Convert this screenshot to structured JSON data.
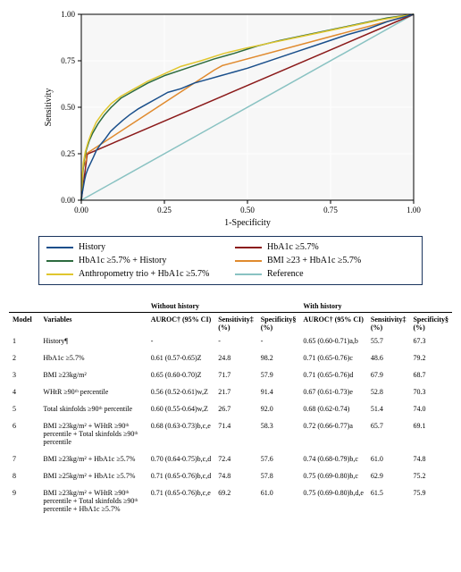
{
  "chart": {
    "type": "line",
    "background_color": "#ffffff",
    "plot_background_color": "#f7f7f7",
    "grid_color": "#ffffff",
    "grid_width": 1,
    "axis_color": "#000000",
    "title_fontsize": 10,
    "label_fontsize": 10,
    "tick_fontsize": 9,
    "xlabel": "1-Specificity",
    "ylabel": "Sensitivity",
    "xlim": [
      0,
      1
    ],
    "ylim": [
      0,
      1
    ],
    "xticks": [
      0.0,
      0.25,
      0.5,
      0.75,
      1.0
    ],
    "yticks": [
      0.0,
      0.25,
      0.5,
      0.75,
      1.0
    ],
    "xtick_labels": [
      "0.00",
      "0.25",
      "0.50",
      "0.75",
      "1.00"
    ],
    "ytick_labels": [
      "0.00",
      "0.25",
      "0.50",
      "0.75",
      "1.00"
    ],
    "line_width": 1.5,
    "series": [
      {
        "name": "Reference",
        "color": "#89c2c2",
        "x": [
          0,
          1
        ],
        "y": [
          0,
          1
        ]
      },
      {
        "name": "HbA1c ≥5.7%",
        "color": "#8b1a1a",
        "x": [
          0.0,
          0.018,
          1.0
        ],
        "y": [
          0.0,
          0.248,
          1.0
        ]
      },
      {
        "name": "BMI ≥23 + HbA1c ≥5.7%",
        "color": "#e08a2e",
        "x": [
          0.0,
          0.005,
          0.015,
          0.015,
          0.4,
          0.424,
          1.0
        ],
        "y": [
          0.0,
          0.17,
          0.22,
          0.25,
          0.7,
          0.724,
          1.0
        ]
      },
      {
        "name": "HbA1c ≥5.7% + History",
        "color": "#2d6b3e",
        "x": [
          0.0,
          0.004,
          0.008,
          0.015,
          0.024,
          0.034,
          0.05,
          0.07,
          0.09,
          0.12,
          0.16,
          0.2,
          0.25,
          0.3,
          0.35,
          0.4,
          0.46,
          0.53,
          0.6,
          0.68,
          0.76,
          0.84,
          0.92,
          1.0
        ],
        "y": [
          0.0,
          0.13,
          0.21,
          0.27,
          0.32,
          0.36,
          0.41,
          0.46,
          0.5,
          0.55,
          0.59,
          0.63,
          0.67,
          0.7,
          0.73,
          0.76,
          0.79,
          0.83,
          0.86,
          0.89,
          0.92,
          0.95,
          0.98,
          1.0
        ]
      },
      {
        "name": "Anthropometry trio + HbA1c ≥5.7%",
        "color": "#e0c62e",
        "x": [
          0.0,
          0.003,
          0.006,
          0.012,
          0.02,
          0.03,
          0.045,
          0.065,
          0.09,
          0.12,
          0.16,
          0.2,
          0.25,
          0.3,
          0.36,
          0.43,
          0.5,
          0.58,
          0.66,
          0.74,
          0.82,
          0.9,
          1.0
        ],
        "y": [
          0.0,
          0.12,
          0.2,
          0.26,
          0.31,
          0.36,
          0.42,
          0.47,
          0.52,
          0.56,
          0.6,
          0.64,
          0.68,
          0.72,
          0.75,
          0.79,
          0.82,
          0.85,
          0.88,
          0.91,
          0.94,
          0.97,
          1.0
        ]
      },
      {
        "name": "History",
        "color": "#1a4f8b",
        "x": [
          0.0,
          0.002,
          0.004,
          0.007,
          0.01,
          0.014,
          0.02,
          0.028,
          0.036,
          0.046,
          0.058,
          0.072,
          0.088,
          0.106,
          0.125,
          0.146,
          0.17,
          0.2,
          0.23,
          0.26,
          0.3,
          0.34,
          0.38,
          0.42,
          0.46,
          0.5,
          0.55,
          0.6,
          0.65,
          0.7,
          0.75,
          0.8,
          0.86,
          0.92,
          1.0
        ],
        "y": [
          0.0,
          0.03,
          0.05,
          0.08,
          0.11,
          0.14,
          0.17,
          0.2,
          0.23,
          0.27,
          0.3,
          0.33,
          0.37,
          0.4,
          0.43,
          0.46,
          0.49,
          0.52,
          0.55,
          0.58,
          0.6,
          0.63,
          0.65,
          0.67,
          0.69,
          0.71,
          0.74,
          0.77,
          0.8,
          0.83,
          0.86,
          0.89,
          0.92,
          0.96,
          1.0
        ]
      }
    ],
    "legend": {
      "border_color": "#1a355e",
      "items": [
        {
          "label": "History",
          "color": "#1a4f8b"
        },
        {
          "label": "HbA1c ≥5.7%",
          "color": "#8b1a1a"
        },
        {
          "label": "HbA1c ≥5.7% + History",
          "color": "#2d6b3e"
        },
        {
          "label": "BMI ≥23 + HbA1c ≥5.7%",
          "color": "#e08a2e"
        },
        {
          "label": "Anthropometry trio + HbA1c ≥5.7%",
          "color": "#e0c62e"
        },
        {
          "label": "Reference",
          "color": "#89c2c2"
        }
      ]
    }
  },
  "table": {
    "group_headers": {
      "left": "Without history",
      "right": "With history"
    },
    "col_headers": {
      "model": "Model",
      "variables": "Variables",
      "auroc": "AUROC† (95% CI)",
      "sens": "Sensitivity‡ (%)",
      "spec": "Specificity§ (%)"
    },
    "rows": [
      {
        "model": "1",
        "variables": "History¶",
        "wo_auroc": "-",
        "wo_sens": "-",
        "wo_spec": "-",
        "w_auroc": "0.65 (0.60-0.71)a,b",
        "w_sens": "55.7",
        "w_spec": "67.3"
      },
      {
        "model": "2",
        "variables": "HbA1c ≥5.7%",
        "wo_auroc": "0.61 (0.57-0.65)Z",
        "wo_sens": "24.8",
        "wo_spec": "98.2",
        "w_auroc": "0.71 (0.65-0.76)c",
        "w_sens": "48.6",
        "w_spec": "79.2"
      },
      {
        "model": "3",
        "variables": "BMI ≥23kg/m²",
        "wo_auroc": "0.65 (0.60-0.70)Z",
        "wo_sens": "71.7",
        "wo_spec": "57.9",
        "w_auroc": "0.71 (0.65-0.76)d",
        "w_sens": "67.9",
        "w_spec": "68.7"
      },
      {
        "model": "4",
        "variables": "WHtR ≥90ᵗʰ percentile",
        "wo_auroc": "0.56 (0.52-0.61)w,Z",
        "wo_sens": "21.7",
        "wo_spec": "91.4",
        "w_auroc": "0.67 (0.61-0.73)e",
        "w_sens": "52.8",
        "w_spec": "70.3"
      },
      {
        "model": "5",
        "variables": "Total skinfolds ≥90ᵗʰ percentile",
        "wo_auroc": "0.60 (0.55-0.64)w,Z",
        "wo_sens": "26.7",
        "wo_spec": "92.0",
        "w_auroc": "0.68 (0.62-0.74)",
        "w_sens": "51.4",
        "w_spec": "74.0"
      },
      {
        "model": "6",
        "variables": "BMI ≥23kg/m² + WHtR ≥90ᵗʰ percentile + Total skinfolds ≥90ᵗʰ percentile",
        "wo_auroc": "0.68 (0.63-0.73)b,c,e",
        "wo_sens": "71.4",
        "wo_spec": "58.3",
        "w_auroc": "0.72 (0.66-0.77)a",
        "w_sens": "65.7",
        "w_spec": "69.1"
      },
      {
        "model": "7",
        "variables": "BMI ≥23kg/m² + HbA1c ≥5.7%",
        "wo_auroc": "0.70 (0.64-0.75)b,c,d",
        "wo_sens": "72.4",
        "wo_spec": "57.6",
        "w_auroc": "0.74 (0.68-0.79)b,c",
        "w_sens": "61.0",
        "w_spec": "74.8"
      },
      {
        "model": "8",
        "variables": "BMI ≥25kg/m² + HbA1c ≥5.7%",
        "wo_auroc": "0.71 (0.65-0.76)b,c,d",
        "wo_sens": "74.8",
        "wo_spec": "57.8",
        "w_auroc": "0.75 (0.69-0.80)b,c",
        "w_sens": "62.9",
        "w_spec": "75.2"
      },
      {
        "model": "9",
        "variables": "BMI ≥23kg/m² + WHtR ≥90ᵗʰ percentile + Total skinfolds ≥90ᵗʰ percentile + HbA1c ≥5.7%",
        "wo_auroc": "0.71 (0.65-0.76)b,c,e",
        "wo_sens": "69.2",
        "wo_spec": "61.0",
        "w_auroc": "0.75 (0.69-0.80)b,d,e",
        "w_sens": "61.5",
        "w_spec": "75.9"
      }
    ]
  }
}
